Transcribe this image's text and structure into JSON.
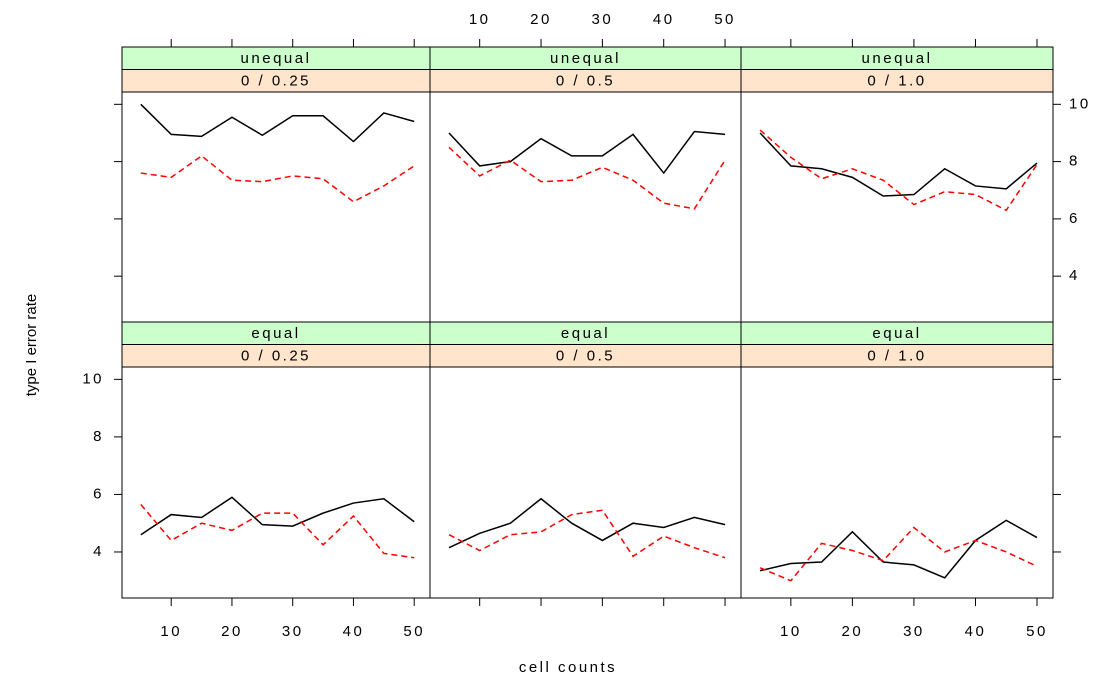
{
  "chart_data": {
    "type": "line",
    "x_label": "cell counts",
    "y_label": "type I error rate",
    "x": [
      5,
      10,
      15,
      20,
      25,
      30,
      35,
      40,
      45,
      50
    ],
    "xlim": [
      1.9,
      52.6
    ],
    "xticks": [
      10,
      20,
      30,
      40,
      50
    ],
    "ylim": [
      2.4,
      10.43
    ],
    "yticks": [
      4,
      6,
      8,
      10
    ],
    "panels": [
      {
        "strips": [
          "unequal",
          "0 / 0.25"
        ],
        "series": [
          {
            "color": "#000000",
            "dash": false,
            "values": [
              10.0,
              8.95,
              8.88,
              9.55,
              8.92,
              9.6,
              9.6,
              8.7,
              9.7,
              9.4
            ]
          },
          {
            "color": "#ff0000",
            "dash": true,
            "values": [
              7.6,
              7.45,
              8.2,
              7.35,
              7.3,
              7.5,
              7.4,
              6.6,
              7.15,
              7.85
            ]
          }
        ]
      },
      {
        "strips": [
          "unequal",
          "0 / 0.5"
        ],
        "series": [
          {
            "color": "#000000",
            "dash": false,
            "values": [
              9.0,
              7.85,
              8.0,
              8.8,
              8.2,
              8.2,
              8.95,
              7.6,
              9.05,
              8.95
            ]
          },
          {
            "color": "#ff0000",
            "dash": true,
            "values": [
              8.5,
              7.5,
              8.05,
              7.3,
              7.35,
              7.8,
              7.35,
              6.55,
              6.35,
              8.05
            ]
          }
        ]
      },
      {
        "strips": [
          "unequal",
          "0 / 1.0"
        ],
        "series": [
          {
            "color": "#000000",
            "dash": false,
            "values": [
              9.0,
              7.85,
              7.75,
              7.45,
              6.8,
              6.85,
              7.75,
              7.15,
              7.05,
              7.95
            ]
          },
          {
            "color": "#ff0000",
            "dash": true,
            "values": [
              9.1,
              8.15,
              7.4,
              7.75,
              7.35,
              6.5,
              6.95,
              6.85,
              6.3,
              7.9
            ]
          }
        ]
      },
      {
        "strips": [
          "equal",
          "0 / 0.25"
        ],
        "series": [
          {
            "color": "#000000",
            "dash": false,
            "values": [
              4.6,
              5.3,
              5.2,
              5.9,
              4.95,
              4.9,
              5.35,
              5.7,
              5.85,
              5.05
            ]
          },
          {
            "color": "#ff0000",
            "dash": true,
            "values": [
              5.65,
              4.4,
              5.0,
              4.75,
              5.35,
              5.35,
              4.25,
              5.25,
              3.95,
              3.8
            ]
          }
        ]
      },
      {
        "strips": [
          "equal",
          "0 / 0.5"
        ],
        "series": [
          {
            "color": "#000000",
            "dash": false,
            "values": [
              4.15,
              4.65,
              5.0,
              5.85,
              5.0,
              4.4,
              5.0,
              4.85,
              5.2,
              4.95
            ]
          },
          {
            "color": "#ff0000",
            "dash": true,
            "values": [
              4.6,
              4.05,
              4.6,
              4.7,
              5.3,
              5.45,
              3.85,
              4.55,
              4.15,
              3.8
            ]
          }
        ]
      },
      {
        "strips": [
          "equal",
          "0 / 1.0"
        ],
        "series": [
          {
            "color": "#000000",
            "dash": false,
            "values": [
              3.35,
              3.6,
              3.65,
              4.7,
              3.65,
              3.55,
              3.1,
              4.4,
              5.1,
              4.5
            ]
          },
          {
            "color": "#ff0000",
            "dash": true,
            "values": [
              3.45,
              3.0,
              4.3,
              4.05,
              3.7,
              4.85,
              4.0,
              4.4,
              4.0,
              3.5
            ]
          }
        ]
      }
    ]
  }
}
